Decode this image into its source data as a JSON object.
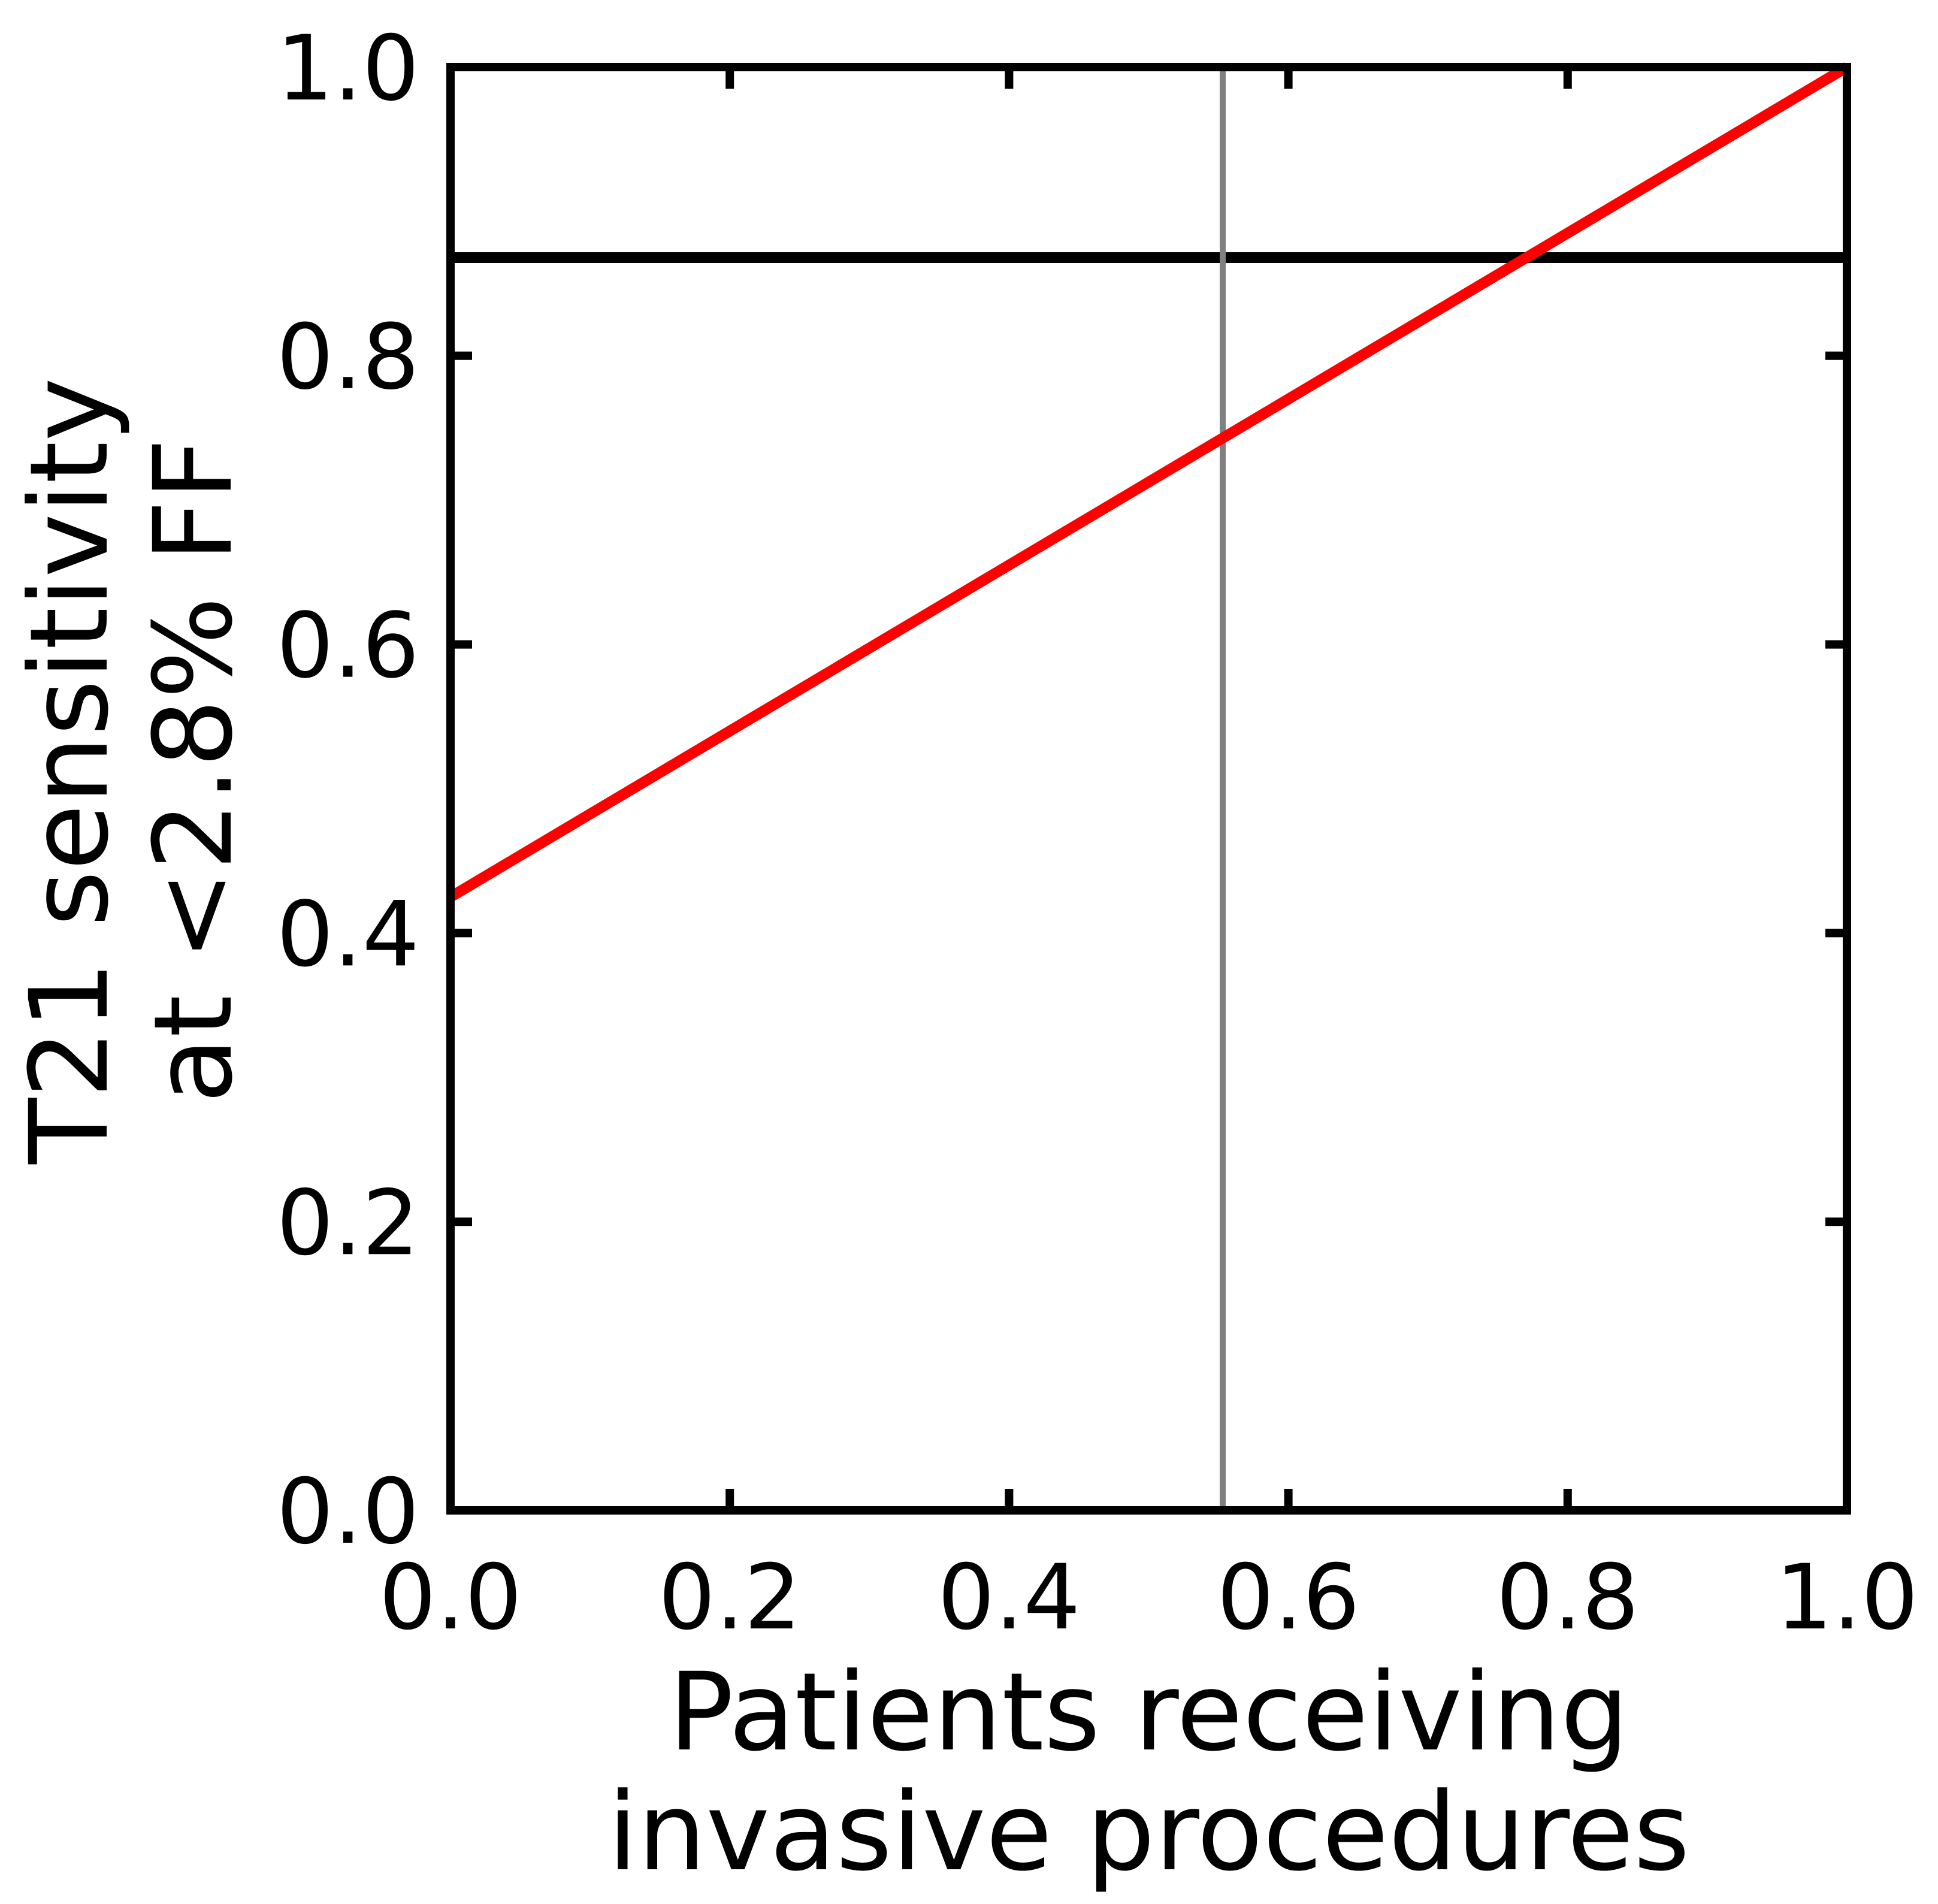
{
  "chart_data": {
    "type": "line",
    "title": "",
    "xlabel": [
      "Patients receiving",
      "invasive procedures"
    ],
    "ylabel": [
      "T21 sensitivity",
      "at <2.8% FF"
    ],
    "xlim": [
      0.0,
      1.0
    ],
    "ylim": [
      0.0,
      1.0
    ],
    "x_ticks": [
      "0.0",
      "0.2",
      "0.4",
      "0.6",
      "0.8",
      "1.0"
    ],
    "y_ticks": [
      "0.0",
      "0.2",
      "0.4",
      "0.6",
      "0.8",
      "1.0"
    ],
    "grid": false,
    "legend": "none",
    "series": [
      {
        "x": [
          0.0,
          1.0
        ],
        "y": [
          0.425,
          1.0
        ],
        "color": "#ff0000"
      }
    ],
    "reference_lines": [
      {
        "orientation": "horizontal",
        "value": 0.868,
        "color": "#000000"
      },
      {
        "orientation": "vertical",
        "value": 0.553,
        "color": "#808080"
      }
    ]
  }
}
